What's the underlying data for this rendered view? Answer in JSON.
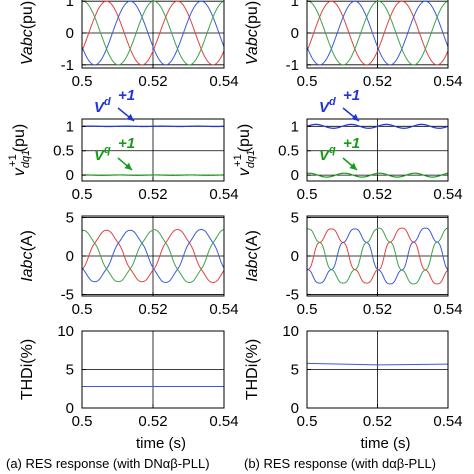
{
  "captions": [
    "(a) RES response (with DNαβ-PLL)",
    "(b) RES response (with dαβ-PLL)"
  ],
  "colors": {
    "phase_a": "#e0433f",
    "phase_b": "#3b5bd6",
    "phase_c": "#3fa24a",
    "vd": "#2036d6",
    "vq": "#1a9a1a",
    "grid": "#000000"
  },
  "chart_data": [
    {
      "type": "line",
      "column": "a",
      "row": "vabc",
      "ylabel": "Vabc(pu)",
      "xlabel": "",
      "x_ticks": [
        "0.5",
        "0.52",
        "0.54"
      ],
      "y_ticks": [
        "-1",
        "0",
        "1"
      ],
      "xlim": [
        0.5,
        0.54
      ],
      "ylim": [
        -1.1,
        1.1
      ],
      "series": [
        {
          "values": "three-phase sine, amplitude 1, 50 Hz"
        }
      ],
      "waveform": {
        "kind": "three_phase",
        "amplitude": [
          1.0,
          1.0
        ],
        "freq_hz": 50,
        "step_t": 0.52
      }
    },
    {
      "type": "line",
      "column": "a",
      "row": "vdq",
      "ylabel": "v_dq1^+1(pu)",
      "xlabel": "",
      "x_ticks": [
        "0.5",
        "0.52",
        "0.54"
      ],
      "y_ticks": [
        "0",
        "0.5",
        "1"
      ],
      "xlim": [
        0.5,
        0.54
      ],
      "ylim": [
        -0.12,
        1.15
      ],
      "annotations": [
        "Vd+1",
        "Vq+1"
      ],
      "waveform": {
        "kind": "dq",
        "vd": 1.0,
        "vq": 0.0,
        "ripple": 0.004,
        "ripple_hz": 100
      }
    },
    {
      "type": "line",
      "column": "a",
      "row": "iabc",
      "ylabel": "Iabc(A)",
      "xlabel": "",
      "x_ticks": [
        "0.5",
        "0.52",
        "0.54"
      ],
      "y_ticks": [
        "-5",
        "0",
        "5"
      ],
      "xlim": [
        0.5,
        0.54
      ],
      "ylim": [
        -5.2,
        5.2
      ],
      "waveform": {
        "kind": "three_phase",
        "amplitude": [
          3.3,
          3.4
        ],
        "freq_hz": 50,
        "step_t": 0.52,
        "distortion": 0.03
      }
    },
    {
      "type": "line",
      "column": "a",
      "row": "thd",
      "ylabel": "THDi(%)",
      "xlabel": "time (s)",
      "x_ticks": [
        "0.5",
        "0.52",
        "0.54"
      ],
      "y_ticks": [
        "0",
        "5",
        "10"
      ],
      "xlim": [
        0.5,
        0.54
      ],
      "ylim": [
        0,
        10
      ],
      "series": [
        {
          "x": [
            0.5,
            0.52,
            0.54
          ],
          "values": [
            2.8,
            2.8,
            2.8
          ]
        }
      ]
    },
    {
      "type": "line",
      "column": "b",
      "row": "vabc",
      "ylabel": "Vabc(pu)",
      "xlabel": "",
      "x_ticks": [
        "0.5",
        "0.52",
        "0.54"
      ],
      "y_ticks": [
        "-1",
        "0",
        "1"
      ],
      "xlim": [
        0.5,
        0.54
      ],
      "ylim": [
        -1.1,
        1.1
      ],
      "waveform": {
        "kind": "three_phase",
        "amplitude": [
          1.0,
          1.0
        ],
        "freq_hz": 50,
        "step_t": 0.52
      }
    },
    {
      "type": "line",
      "column": "b",
      "row": "vdq",
      "ylabel": "v_dq1^+1(pu)",
      "xlabel": "",
      "x_ticks": [
        "0.5",
        "0.52",
        "0.54"
      ],
      "y_ticks": [
        "0",
        "0.5",
        "1"
      ],
      "xlim": [
        0.5,
        0.54
      ],
      "ylim": [
        -0.12,
        1.15
      ],
      "annotations": [
        "Vd+1",
        "Vq+1"
      ],
      "waveform": {
        "kind": "dq",
        "vd": 1.0,
        "vq": 0.0,
        "ripple": 0.04,
        "ripple_hz": 100
      }
    },
    {
      "type": "line",
      "column": "b",
      "row": "iabc",
      "ylabel": "Iabc(A)",
      "xlabel": "",
      "x_ticks": [
        "0.5",
        "0.52",
        "0.54"
      ],
      "y_ticks": [
        "-5",
        "0",
        "5"
      ],
      "xlim": [
        0.5,
        0.54
      ],
      "ylim": [
        -5.2,
        5.2
      ],
      "waveform": {
        "kind": "three_phase",
        "amplitude": [
          3.4,
          3.5
        ],
        "freq_hz": 50,
        "step_t": 0.52,
        "distortion": 0.09
      }
    },
    {
      "type": "line",
      "column": "b",
      "row": "thd",
      "ylabel": "THDi(%)",
      "xlabel": "time (s)",
      "x_ticks": [
        "0.5",
        "0.52",
        "0.54"
      ],
      "y_ticks": [
        "0",
        "5",
        "10"
      ],
      "xlim": [
        0.5,
        0.54
      ],
      "ylim": [
        0,
        10
      ],
      "series": [
        {
          "x": [
            0.5,
            0.52,
            0.54
          ],
          "values": [
            5.8,
            5.6,
            5.7
          ]
        }
      ]
    }
  ]
}
